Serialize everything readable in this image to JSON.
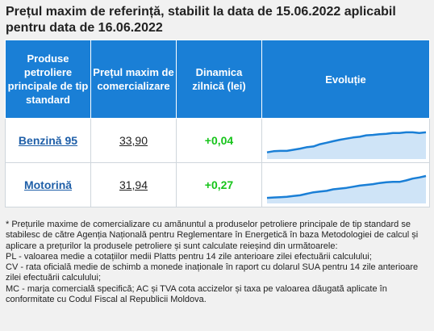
{
  "title": "Prețul maxim de referință, stabilit la data de 15.06.2022 aplicabil pentru data de 16.06.2022",
  "table": {
    "headers": [
      "Produse petroliere principale de tip standard",
      "Prețul maxim de comercializare",
      "Dinamica zilnică (lei)",
      "Evoluție"
    ],
    "rows": [
      {
        "product": "Benzină 95",
        "price": "33,90",
        "change": "+0,04",
        "change_color": "#16c41a",
        "trend": [
          0.82,
          0.79,
          0.78,
          0.78,
          0.75,
          0.72,
          0.68,
          0.66,
          0.6,
          0.56,
          0.52,
          0.48,
          0.45,
          0.42,
          0.4,
          0.36,
          0.35,
          0.33,
          0.32,
          0.3,
          0.3,
          0.28,
          0.28,
          0.3,
          0.28
        ]
      },
      {
        "product": "Motorină",
        "price": "31,94",
        "change": "+0,27",
        "change_color": "#16c41a",
        "trend": [
          0.85,
          0.84,
          0.83,
          0.82,
          0.8,
          0.78,
          0.74,
          0.7,
          0.68,
          0.66,
          0.62,
          0.6,
          0.58,
          0.55,
          0.52,
          0.5,
          0.48,
          0.45,
          0.43,
          0.42,
          0.42,
          0.38,
          0.33,
          0.3,
          0.26
        ]
      }
    ]
  },
  "colors": {
    "header_bg": "#1a7fd6",
    "accent": "#1a7fd6",
    "sparkline_line": "#1a7fd6",
    "sparkline_fill": "#cfe4f7"
  },
  "notes": [
    "* Prețurile maxime de comercializare cu amănuntul a produselor petroliere principale de tip standard se stabilesc de către Agenția Națională pentru Reglementare în Energetică în baza Metodologiei de calcul și aplicare a prețurilor la produsele petroliere și sunt calculate reieșind din următoarele:",
    "PL - valoarea medie a cotațiilor medii Platts pentru 14 zile anterioare zilei efectuării calculului;",
    "CV - rata oficială medie de schimb a monede inaționale în raport cu dolarul SUA pentru 14 zile anterioare zilei efectuării calculului;",
    "MC - marja comercială specifică; AC și TVA cota accizelor și taxa pe valoarea dăugată aplicate în conformitate cu Codul Fiscal al Republicii Moldova."
  ]
}
